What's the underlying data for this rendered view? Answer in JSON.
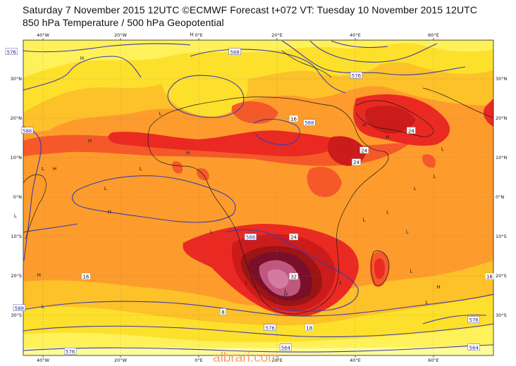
{
  "header": {
    "line1": "Saturday 7 November 2015 12UTC ©ECMWF Forecast t+072 VT: Tuesday 10 November 2015 12UTC",
    "line2": "850 hPa Temperature / 500 hPa Geopotential"
  },
  "watermark": "albrari.com",
  "axes": {
    "lon_labels": [
      "40°W",
      "20°W",
      "0°E",
      "20°E",
      "40°E",
      "60°E"
    ],
    "lat_labels": [
      "30°N",
      "20°N",
      "10°N",
      "0°N",
      "10°S",
      "20°S",
      "30°S"
    ]
  },
  "temperature_labels": [
    {
      "text": "16",
      "lon": 24,
      "lat": 20
    },
    {
      "text": "24",
      "lon": 54,
      "lat": 17
    },
    {
      "text": "24",
      "lon": 42,
      "lat": 12
    },
    {
      "text": "24",
      "lon": 40,
      "lat": 9
    },
    {
      "text": "24",
      "lon": 24,
      "lat": -10
    },
    {
      "text": "32",
      "lon": 24,
      "lat": -20
    },
    {
      "text": "16",
      "lon": -29,
      "lat": -20
    },
    {
      "text": "16",
      "lon": 74,
      "lat": -20
    },
    {
      "text": "18",
      "lon": 28,
      "lat": -33
    },
    {
      "text": "8",
      "lon": 6,
      "lat": -29
    }
  ],
  "geopotential_labels": [
    {
      "text": "576",
      "lon": -48,
      "lat": 37
    },
    {
      "text": "588",
      "lon": -44,
      "lat": 17
    },
    {
      "text": "588",
      "lon": 9,
      "lat": 37
    },
    {
      "text": "588",
      "lon": 28,
      "lat": 19
    },
    {
      "text": "576",
      "lon": 40,
      "lat": 31
    },
    {
      "text": "588",
      "lon": 13,
      "lat": -10
    },
    {
      "text": "588",
      "lon": -46,
      "lat": -28
    },
    {
      "text": "576",
      "lon": -33,
      "lat": -39
    },
    {
      "text": "576",
      "lon": 18,
      "lat": -33
    },
    {
      "text": "564",
      "lon": 22,
      "lat": -38
    },
    {
      "text": "576",
      "lon": 70,
      "lat": -31
    },
    {
      "text": "564",
      "lon": 70,
      "lat": -38
    }
  ],
  "pressure_marks": [
    {
      "text": "H",
      "lon": -2,
      "lat": 41
    },
    {
      "text": "H",
      "lon": -30,
      "lat": 35
    },
    {
      "text": "L",
      "lon": -10,
      "lat": 21
    },
    {
      "text": "H",
      "lon": -28,
      "lat": 14
    },
    {
      "text": "L",
      "lon": -40,
      "lat": 7
    },
    {
      "text": "H",
      "lon": -37,
      "lat": 7
    },
    {
      "text": "L",
      "lon": -24,
      "lat": 2
    },
    {
      "text": "L",
      "lon": -15,
      "lat": 7
    },
    {
      "text": "H",
      "lon": -3,
      "lat": 11
    },
    {
      "text": "H",
      "lon": -23,
      "lat": -4
    },
    {
      "text": "L",
      "lon": -47,
      "lat": -5
    },
    {
      "text": "L",
      "lon": 3,
      "lat": -9
    },
    {
      "text": "H",
      "lon": -41,
      "lat": -20
    },
    {
      "text": "L",
      "lon": -40,
      "lat": -28
    },
    {
      "text": "L",
      "lon": 12,
      "lat": -22
    },
    {
      "text": "L",
      "lon": 22,
      "lat": -24
    },
    {
      "text": "H",
      "lon": 22,
      "lat": -25
    },
    {
      "text": "L",
      "lon": 28,
      "lat": -25
    },
    {
      "text": "L",
      "lon": 36,
      "lat": -22
    },
    {
      "text": "L",
      "lon": 42,
      "lat": -6
    },
    {
      "text": "L",
      "lon": 48,
      "lat": -4
    },
    {
      "text": "L",
      "lon": 55,
      "lat": 2
    },
    {
      "text": "L",
      "lon": 53,
      "lat": -9
    },
    {
      "text": "H",
      "lon": 42,
      "lat": 18
    },
    {
      "text": "H",
      "lon": 48,
      "lat": 15
    },
    {
      "text": "L",
      "lon": 60,
      "lat": 5
    },
    {
      "text": "L",
      "lon": 54,
      "lat": -19
    },
    {
      "text": "L",
      "lon": 58,
      "lat": -27
    },
    {
      "text": "H",
      "lon": 61,
      "lat": -23
    },
    {
      "text": "L",
      "lon": 62,
      "lat": 12
    }
  ]
}
